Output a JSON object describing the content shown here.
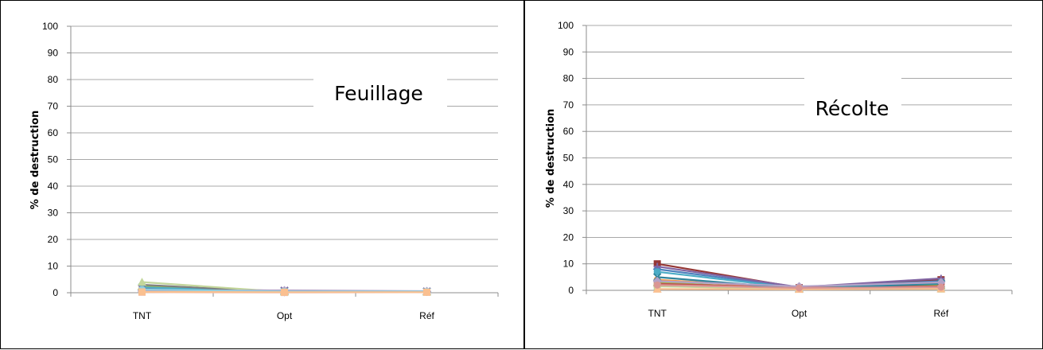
{
  "chart_data": [
    {
      "type": "line",
      "title": "Feuillage",
      "xlabel": "",
      "ylabel": "% de destruction",
      "ylim": [
        0,
        100
      ],
      "yticks": [
        0,
        10,
        20,
        30,
        40,
        50,
        60,
        70,
        80,
        90,
        100
      ],
      "categories": [
        "TNT",
        "Opt",
        "Réf"
      ],
      "grid": true,
      "series": [
        {
          "color": "#4F81BD",
          "marker": "diamond",
          "values": [
            1.0,
            0.3,
            0.4
          ]
        },
        {
          "color": "#C0504D",
          "marker": "square",
          "values": [
            0.5,
            0.2,
            0.3
          ]
        },
        {
          "color": "#9BBB59",
          "marker": "triangle",
          "values": [
            2.5,
            0.5,
            0.4
          ]
        },
        {
          "color": "#8064A2",
          "marker": "x",
          "values": [
            1.5,
            0.8,
            0.5
          ]
        },
        {
          "color": "#4BACC6",
          "marker": "star",
          "values": [
            2.0,
            0.4,
            0.3
          ]
        },
        {
          "color": "#F79646",
          "marker": "circle",
          "values": [
            0.6,
            0.3,
            0.3
          ]
        },
        {
          "color": "#7F7F7F",
          "marker": "plus",
          "values": [
            3.0,
            0.2,
            0.2
          ]
        },
        {
          "color": "#C3D69B",
          "marker": "triangle",
          "values": [
            4.0,
            0.3,
            0.3
          ]
        },
        {
          "color": "#E6B9B8",
          "marker": "square",
          "values": [
            0.2,
            0.1,
            0.2
          ]
        },
        {
          "color": "#B3A2C7",
          "marker": "diamond",
          "values": [
            0.8,
            0.9,
            0.6
          ]
        },
        {
          "color": "#93CDDD",
          "marker": "circle",
          "values": [
            1.2,
            0.5,
            0.5
          ]
        },
        {
          "color": "#FAC090",
          "marker": "square",
          "values": [
            0.3,
            0.2,
            0.2
          ]
        }
      ]
    },
    {
      "type": "line",
      "title": "Récolte",
      "xlabel": "",
      "ylabel": "% de destruction",
      "ylim": [
        0,
        100
      ],
      "yticks": [
        0,
        10,
        20,
        30,
        40,
        50,
        60,
        70,
        80,
        90,
        100
      ],
      "categories": [
        "TNT",
        "Opt",
        "Réf"
      ],
      "grid": true,
      "series": [
        {
          "color": "#953735",
          "marker": "square",
          "values": [
            10.0,
            1.0,
            4.0
          ]
        },
        {
          "color": "#4F81BD",
          "marker": "diamond",
          "values": [
            8.0,
            1.0,
            3.5
          ]
        },
        {
          "color": "#8064A2",
          "marker": "plus",
          "values": [
            9.0,
            1.2,
            4.5
          ]
        },
        {
          "color": "#4BACC6",
          "marker": "circle",
          "values": [
            7.0,
            0.8,
            3.0
          ]
        },
        {
          "color": "#F79646",
          "marker": "circle",
          "values": [
            4.0,
            0.8,
            1.0
          ]
        },
        {
          "color": "#9BBB59",
          "marker": "triangle",
          "values": [
            3.0,
            0.5,
            2.0
          ]
        },
        {
          "color": "#C0504D",
          "marker": "square",
          "values": [
            2.5,
            1.0,
            1.5
          ]
        },
        {
          "color": "#31859C",
          "marker": "x",
          "values": [
            5.0,
            0.6,
            2.5
          ]
        },
        {
          "color": "#C3D69B",
          "marker": "square",
          "values": [
            1.5,
            0.5,
            0.5
          ]
        },
        {
          "color": "#B3A2C7",
          "marker": "diamond",
          "values": [
            3.5,
            1.5,
            3.0
          ]
        },
        {
          "color": "#FAC090",
          "marker": "triangle",
          "values": [
            0.5,
            0.4,
            0.6
          ]
        },
        {
          "color": "#D99694",
          "marker": "circle",
          "values": [
            2.0,
            0.9,
            1.2
          ]
        }
      ]
    }
  ]
}
